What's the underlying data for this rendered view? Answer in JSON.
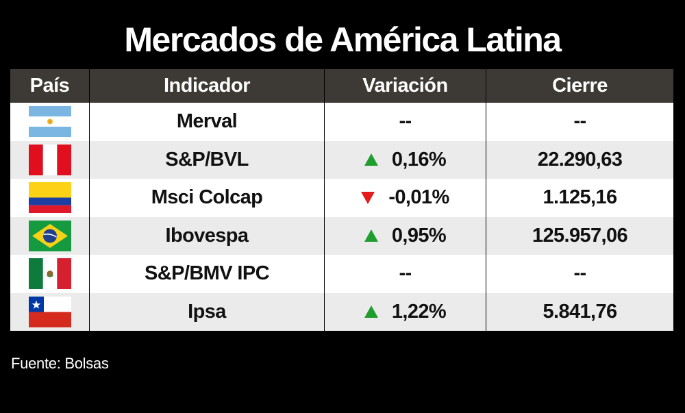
{
  "title": "Mercados de América Latina",
  "source": "Fuente: Bolsas",
  "colors": {
    "up": "#1f9e2e",
    "down": "#e31b1b",
    "header_bg": "#3d3a36"
  },
  "chart_data": {
    "type": "table",
    "title": "Mercados de América Latina",
    "columns": [
      "País",
      "Indicador",
      "Variación",
      "Cierre"
    ],
    "rows": [
      {
        "flag": "argentina-flag",
        "indicator": "Merval",
        "direction": "none",
        "variation": "--",
        "close": "--"
      },
      {
        "flag": "peru-flag",
        "indicator": "S&P/BVL",
        "direction": "up",
        "variation": "0,16%",
        "close": "22.290,63"
      },
      {
        "flag": "colombia-flag",
        "indicator": "Msci Colcap",
        "direction": "down",
        "variation": "-0,01%",
        "close": "1.125,16"
      },
      {
        "flag": "brazil-flag",
        "indicator": "Ibovespa",
        "direction": "up",
        "variation": "0,95%",
        "close": "125.957,06"
      },
      {
        "flag": "mexico-flag",
        "indicator": "S&P/BMV IPC",
        "direction": "none",
        "variation": "--",
        "close": "--"
      },
      {
        "flag": "chile-flag",
        "indicator": "Ipsa",
        "direction": "up",
        "variation": "1,22%",
        "close": "5.841,76"
      }
    ]
  }
}
